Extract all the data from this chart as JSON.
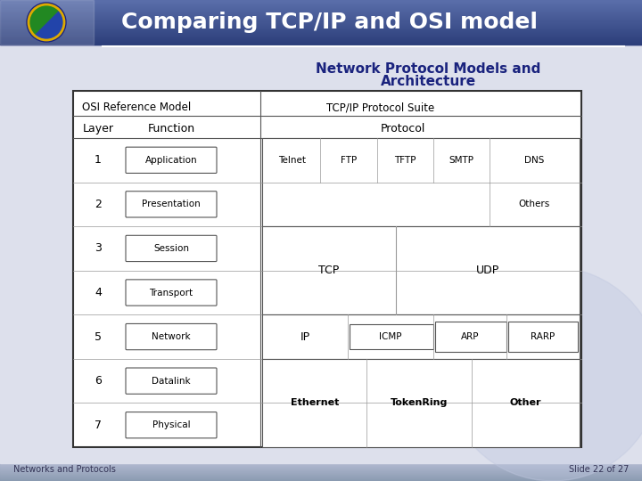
{
  "title": "Comparing TCP/IP and OSI model",
  "subtitle_line1": "Network Protocol Models and",
  "subtitle_line2": "Architecture",
  "footer_left": "Networks and Protocols",
  "footer_right": "Slide 22 of 27",
  "osi_header": "OSI Reference Model",
  "tcpip_header": "TCP/IP Protocol Suite",
  "layer_label": "Layer",
  "function_label": "Function",
  "protocol_label": "Protocol",
  "layers": [
    1,
    2,
    3,
    4,
    5,
    6,
    7
  ],
  "functions": [
    "Application",
    "Presentation",
    "Session",
    "Transport",
    "Network",
    "Datalink",
    "Physical"
  ],
  "bg_top_color": "#2c3e7a",
  "bg_bottom_color": "#c8cce0",
  "slide_bg": "#dde0ec",
  "table_bg": "#ffffff",
  "header_bar_color": "#1a237e"
}
